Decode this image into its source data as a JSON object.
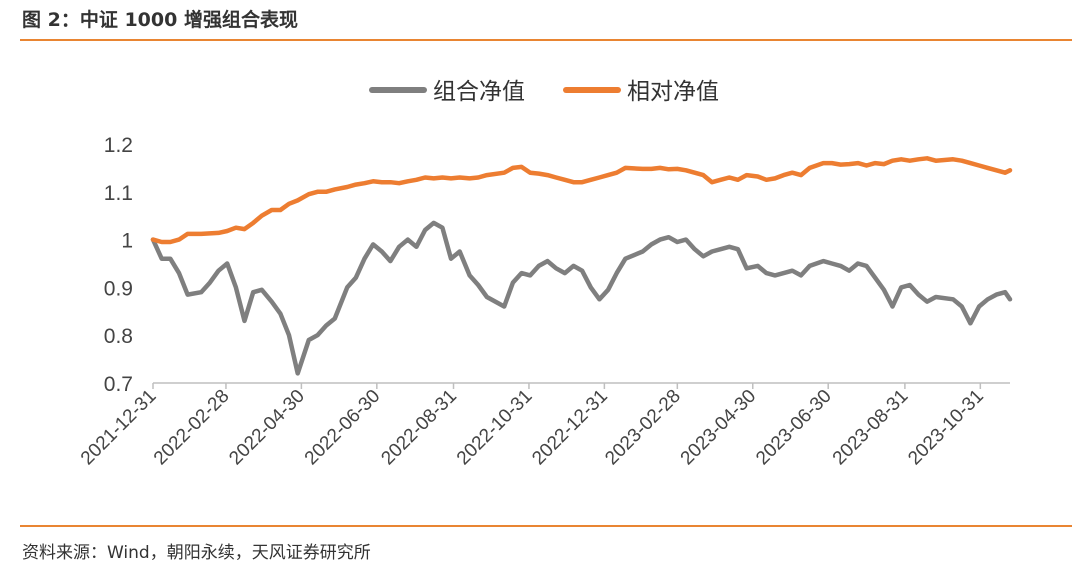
{
  "figure": {
    "title": "图 2：中证 1000 增强组合表现",
    "source": "资料来源：Wind，朝阳永续，天风证券研究所"
  },
  "colors": {
    "series1": "#7f7f7f",
    "series2": "#ed7d31",
    "rule": "#e98532",
    "axis": "#bfbfbf"
  },
  "chart_data": {
    "type": "line",
    "title": "",
    "xlabel": "",
    "ylabel": "",
    "ylim": [
      0.7,
      1.2
    ],
    "yticks": [
      "0.7",
      "0.8",
      "0.9",
      "1",
      "1.1",
      "1.2"
    ],
    "x_tick_labels": [
      "2021-12-31",
      "2022-02-28",
      "2022-04-30",
      "2022-06-30",
      "2022-08-31",
      "2022-10-31",
      "2022-12-31",
      "2023-02-28",
      "2023-04-30",
      "2023-06-30",
      "2023-08-31",
      "2023-10-31"
    ],
    "x_range": [
      "2021-12-31",
      "2023-11-24"
    ],
    "grid": false,
    "legend": "top-center",
    "series": [
      {
        "name": "组合净值",
        "color": "#7f7f7f",
        "points": [
          [
            "2021-12-31",
            1.0
          ],
          [
            "2022-01-07",
            0.96
          ],
          [
            "2022-01-14",
            0.96
          ],
          [
            "2022-01-21",
            0.93
          ],
          [
            "2022-01-28",
            0.885
          ],
          [
            "2022-02-08",
            0.89
          ],
          [
            "2022-02-15",
            0.91
          ],
          [
            "2022-02-22",
            0.935
          ],
          [
            "2022-03-01",
            0.95
          ],
          [
            "2022-03-08",
            0.9
          ],
          [
            "2022-03-15",
            0.83
          ],
          [
            "2022-03-22",
            0.89
          ],
          [
            "2022-03-29",
            0.895
          ],
          [
            "2022-04-06",
            0.87
          ],
          [
            "2022-04-13",
            0.845
          ],
          [
            "2022-04-20",
            0.8
          ],
          [
            "2022-04-27",
            0.72
          ],
          [
            "2022-05-06",
            0.79
          ],
          [
            "2022-05-13",
            0.8
          ],
          [
            "2022-05-20",
            0.82
          ],
          [
            "2022-05-27",
            0.835
          ],
          [
            "2022-06-06",
            0.9
          ],
          [
            "2022-06-13",
            0.92
          ],
          [
            "2022-06-20",
            0.96
          ],
          [
            "2022-06-27",
            0.99
          ],
          [
            "2022-07-04",
            0.975
          ],
          [
            "2022-07-11",
            0.955
          ],
          [
            "2022-07-18",
            0.985
          ],
          [
            "2022-07-25",
            1.0
          ],
          [
            "2022-08-01",
            0.985
          ],
          [
            "2022-08-08",
            1.02
          ],
          [
            "2022-08-15",
            1.035
          ],
          [
            "2022-08-22",
            1.025
          ],
          [
            "2022-08-29",
            0.96
          ],
          [
            "2022-09-05",
            0.975
          ],
          [
            "2022-09-13",
            0.925
          ],
          [
            "2022-09-20",
            0.905
          ],
          [
            "2022-09-27",
            0.88
          ],
          [
            "2022-10-11",
            0.86
          ],
          [
            "2022-10-18",
            0.91
          ],
          [
            "2022-10-25",
            0.93
          ],
          [
            "2022-11-01",
            0.925
          ],
          [
            "2022-11-08",
            0.945
          ],
          [
            "2022-11-15",
            0.955
          ],
          [
            "2022-11-22",
            0.94
          ],
          [
            "2022-11-29",
            0.93
          ],
          [
            "2022-12-06",
            0.945
          ],
          [
            "2022-12-13",
            0.935
          ],
          [
            "2022-12-20",
            0.9
          ],
          [
            "2022-12-27",
            0.875
          ],
          [
            "2023-01-03",
            0.895
          ],
          [
            "2023-01-10",
            0.93
          ],
          [
            "2023-01-17",
            0.96
          ],
          [
            "2023-01-31",
            0.975
          ],
          [
            "2023-02-07",
            0.99
          ],
          [
            "2023-02-14",
            1.0
          ],
          [
            "2023-02-21",
            1.005
          ],
          [
            "2023-02-28",
            0.995
          ],
          [
            "2023-03-07",
            1.0
          ],
          [
            "2023-03-14",
            0.98
          ],
          [
            "2023-03-21",
            0.965
          ],
          [
            "2023-03-28",
            0.975
          ],
          [
            "2023-04-04",
            0.98
          ],
          [
            "2023-04-11",
            0.985
          ],
          [
            "2023-04-18",
            0.98
          ],
          [
            "2023-04-25",
            0.94
          ],
          [
            "2023-05-04",
            0.945
          ],
          [
            "2023-05-11",
            0.93
          ],
          [
            "2023-05-18",
            0.925
          ],
          [
            "2023-05-25",
            0.93
          ],
          [
            "2023-06-01",
            0.935
          ],
          [
            "2023-06-08",
            0.925
          ],
          [
            "2023-06-15",
            0.945
          ],
          [
            "2023-06-26",
            0.955
          ],
          [
            "2023-07-03",
            0.95
          ],
          [
            "2023-07-10",
            0.945
          ],
          [
            "2023-07-17",
            0.935
          ],
          [
            "2023-07-24",
            0.95
          ],
          [
            "2023-07-31",
            0.945
          ],
          [
            "2023-08-07",
            0.92
          ],
          [
            "2023-08-14",
            0.895
          ],
          [
            "2023-08-21",
            0.86
          ],
          [
            "2023-08-28",
            0.9
          ],
          [
            "2023-09-04",
            0.905
          ],
          [
            "2023-09-11",
            0.885
          ],
          [
            "2023-09-18",
            0.87
          ],
          [
            "2023-09-25",
            0.88
          ],
          [
            "2023-10-09",
            0.875
          ],
          [
            "2023-10-16",
            0.86
          ],
          [
            "2023-10-23",
            0.825
          ],
          [
            "2023-10-30",
            0.86
          ],
          [
            "2023-11-06",
            0.875
          ],
          [
            "2023-11-13",
            0.885
          ],
          [
            "2023-11-20",
            0.89
          ],
          [
            "2023-11-24",
            0.875
          ]
        ]
      },
      {
        "name": "相对净值",
        "color": "#ed7d31",
        "points": [
          [
            "2021-12-31",
            1.0
          ],
          [
            "2022-01-07",
            0.995
          ],
          [
            "2022-01-14",
            0.995
          ],
          [
            "2022-01-21",
            1.0
          ],
          [
            "2022-01-28",
            1.012
          ],
          [
            "2022-02-08",
            1.012
          ],
          [
            "2022-02-15",
            1.013
          ],
          [
            "2022-02-22",
            1.014
          ],
          [
            "2022-03-01",
            1.018
          ],
          [
            "2022-03-08",
            1.025
          ],
          [
            "2022-03-15",
            1.022
          ],
          [
            "2022-03-22",
            1.035
          ],
          [
            "2022-03-29",
            1.05
          ],
          [
            "2022-04-06",
            1.062
          ],
          [
            "2022-04-13",
            1.062
          ],
          [
            "2022-04-20",
            1.075
          ],
          [
            "2022-04-27",
            1.082
          ],
          [
            "2022-05-06",
            1.095
          ],
          [
            "2022-05-13",
            1.1
          ],
          [
            "2022-05-20",
            1.1
          ],
          [
            "2022-05-27",
            1.105
          ],
          [
            "2022-06-06",
            1.11
          ],
          [
            "2022-06-13",
            1.115
          ],
          [
            "2022-06-20",
            1.118
          ],
          [
            "2022-06-27",
            1.122
          ],
          [
            "2022-07-04",
            1.12
          ],
          [
            "2022-07-11",
            1.12
          ],
          [
            "2022-07-18",
            1.118
          ],
          [
            "2022-07-25",
            1.122
          ],
          [
            "2022-08-01",
            1.125
          ],
          [
            "2022-08-08",
            1.13
          ],
          [
            "2022-08-15",
            1.128
          ],
          [
            "2022-08-22",
            1.13
          ],
          [
            "2022-08-29",
            1.128
          ],
          [
            "2022-09-05",
            1.13
          ],
          [
            "2022-09-13",
            1.128
          ],
          [
            "2022-09-20",
            1.13
          ],
          [
            "2022-09-27",
            1.135
          ],
          [
            "2022-10-11",
            1.14
          ],
          [
            "2022-10-18",
            1.15
          ],
          [
            "2022-10-25",
            1.152
          ],
          [
            "2022-11-01",
            1.14
          ],
          [
            "2022-11-08",
            1.138
          ],
          [
            "2022-11-15",
            1.135
          ],
          [
            "2022-11-22",
            1.13
          ],
          [
            "2022-11-29",
            1.125
          ],
          [
            "2022-12-06",
            1.12
          ],
          [
            "2022-12-13",
            1.12
          ],
          [
            "2022-12-20",
            1.125
          ],
          [
            "2022-12-27",
            1.13
          ],
          [
            "2023-01-03",
            1.135
          ],
          [
            "2023-01-10",
            1.14
          ],
          [
            "2023-01-17",
            1.15
          ],
          [
            "2023-01-31",
            1.148
          ],
          [
            "2023-02-07",
            1.148
          ],
          [
            "2023-02-14",
            1.15
          ],
          [
            "2023-02-21",
            1.147
          ],
          [
            "2023-02-28",
            1.148
          ],
          [
            "2023-03-07",
            1.145
          ],
          [
            "2023-03-14",
            1.14
          ],
          [
            "2023-03-21",
            1.135
          ],
          [
            "2023-03-28",
            1.12
          ],
          [
            "2023-04-04",
            1.125
          ],
          [
            "2023-04-11",
            1.13
          ],
          [
            "2023-04-18",
            1.125
          ],
          [
            "2023-04-25",
            1.135
          ],
          [
            "2023-05-04",
            1.132
          ],
          [
            "2023-05-11",
            1.125
          ],
          [
            "2023-05-18",
            1.128
          ],
          [
            "2023-05-25",
            1.135
          ],
          [
            "2023-06-01",
            1.14
          ],
          [
            "2023-06-08",
            1.135
          ],
          [
            "2023-06-15",
            1.15
          ],
          [
            "2023-06-26",
            1.16
          ],
          [
            "2023-07-03",
            1.16
          ],
          [
            "2023-07-10",
            1.157
          ],
          [
            "2023-07-17",
            1.158
          ],
          [
            "2023-07-24",
            1.16
          ],
          [
            "2023-07-31",
            1.155
          ],
          [
            "2023-08-07",
            1.16
          ],
          [
            "2023-08-14",
            1.158
          ],
          [
            "2023-08-21",
            1.165
          ],
          [
            "2023-08-28",
            1.168
          ],
          [
            "2023-09-04",
            1.165
          ],
          [
            "2023-09-11",
            1.168
          ],
          [
            "2023-09-18",
            1.17
          ],
          [
            "2023-09-25",
            1.165
          ],
          [
            "2023-10-09",
            1.168
          ],
          [
            "2023-10-16",
            1.165
          ],
          [
            "2023-10-23",
            1.16
          ],
          [
            "2023-10-30",
            1.155
          ],
          [
            "2023-11-06",
            1.15
          ],
          [
            "2023-11-13",
            1.145
          ],
          [
            "2023-11-20",
            1.14
          ],
          [
            "2023-11-24",
            1.145
          ]
        ]
      }
    ]
  }
}
